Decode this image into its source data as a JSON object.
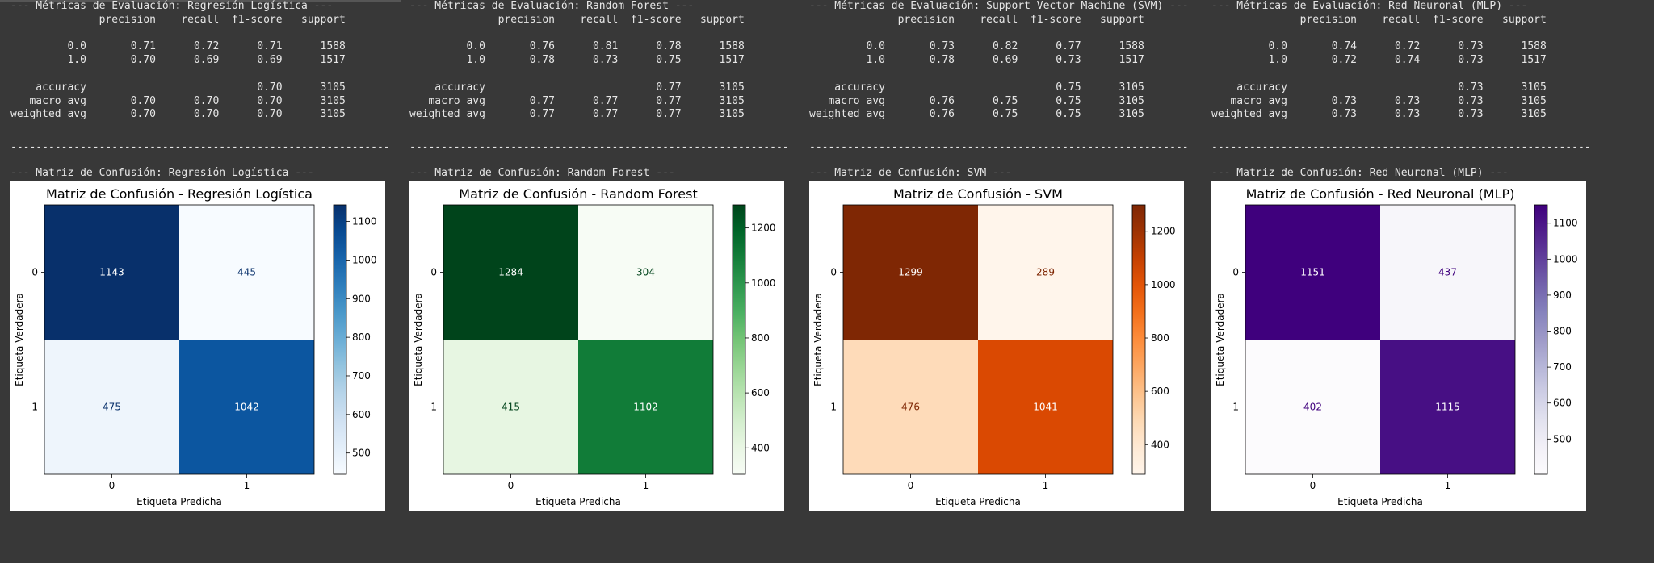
{
  "colors": {
    "background": "#383838",
    "output_text": "#e6e6e6",
    "figure_background": "#ffffff"
  },
  "panels": [
    {
      "report_header": "--- Métricas de Evaluación: Regresión Logística ---",
      "report_table": "              precision    recall  f1-score   support\n\n         0.0       0.71      0.72      0.71      1588\n         1.0       0.70      0.69      0.69      1517\n\n    accuracy                           0.70      3105\n   macro avg       0.70      0.70      0.70      3105\nweighted avg       0.70      0.70      0.70      3105",
      "separator": "------------------------------------------------------------",
      "matrix_header": "--- Matriz de Confusión: Regresión Logística ---",
      "colormap": "Blues",
      "chart_data": {
        "type": "heatmap",
        "title": "Matriz de Confusión - Regresión Logística",
        "xlabel": "Etiqueta Predicha",
        "ylabel": "Etiqueta Verdadera",
        "x_ticks": [
          "0",
          "1"
        ],
        "y_ticks": [
          "0",
          "1"
        ],
        "matrix": [
          [
            1143,
            445
          ],
          [
            475,
            1042
          ]
        ],
        "colorbar_range": [
          445,
          1143
        ],
        "colorbar_ticks": [
          "500",
          "600",
          "700",
          "800",
          "900",
          "1000",
          "1100"
        ],
        "colorbar_values": [
          500,
          600,
          700,
          800,
          900,
          1000,
          1100
        ]
      }
    },
    {
      "report_header": "--- Métricas de Evaluación: Random Forest ---",
      "report_table": "              precision    recall  f1-score   support\n\n         0.0       0.76      0.81      0.78      1588\n         1.0       0.78      0.73      0.75      1517\n\n    accuracy                           0.77      3105\n   macro avg       0.77      0.77      0.77      3105\nweighted avg       0.77      0.77      0.77      3105",
      "separator": "------------------------------------------------------------",
      "matrix_header": "--- Matriz de Confusión: Random Forest ---",
      "colormap": "Greens",
      "chart_data": {
        "type": "heatmap",
        "title": "Matriz de Confusión - Random Forest",
        "xlabel": "Etiqueta Predicha",
        "ylabel": "Etiqueta Verdadera",
        "x_ticks": [
          "0",
          "1"
        ],
        "y_ticks": [
          "0",
          "1"
        ],
        "matrix": [
          [
            1284,
            304
          ],
          [
            415,
            1102
          ]
        ],
        "colorbar_range": [
          304,
          1284
        ],
        "colorbar_ticks": [
          "400",
          "600",
          "800",
          "1000",
          "1200"
        ],
        "colorbar_values": [
          400,
          600,
          800,
          1000,
          1200
        ]
      }
    },
    {
      "report_header": "--- Métricas de Evaluación: Support Vector Machine (SVM) ---",
      "report_table": "              precision    recall  f1-score   support\n\n         0.0       0.73      0.82      0.77      1588\n         1.0       0.78      0.69      0.73      1517\n\n    accuracy                           0.75      3105\n   macro avg       0.76      0.75      0.75      3105\nweighted avg       0.76      0.75      0.75      3105",
      "separator": "------------------------------------------------------------",
      "matrix_header": "--- Matriz de Confusión: SVM ---",
      "colormap": "Oranges",
      "chart_data": {
        "type": "heatmap",
        "title": "Matriz de Confusión - SVM",
        "xlabel": "Etiqueta Predicha",
        "ylabel": "Etiqueta Verdadera",
        "x_ticks": [
          "0",
          "1"
        ],
        "y_ticks": [
          "0",
          "1"
        ],
        "matrix": [
          [
            1299,
            289
          ],
          [
            476,
            1041
          ]
        ],
        "colorbar_range": [
          289,
          1299
        ],
        "colorbar_ticks": [
          "400",
          "600",
          "800",
          "1000",
          "1200"
        ],
        "colorbar_values": [
          400,
          600,
          800,
          1000,
          1200
        ]
      }
    },
    {
      "report_header": "--- Métricas de Evaluación: Red Neuronal (MLP) ---",
      "report_table": "              precision    recall  f1-score   support\n\n         0.0       0.74      0.72      0.73      1588\n         1.0       0.72      0.74      0.73      1517\n\n    accuracy                           0.73      3105\n   macro avg       0.73      0.73      0.73      3105\nweighted avg       0.73      0.73      0.73      3105",
      "separator": "------------------------------------------------------------",
      "matrix_header": "--- Matriz de Confusión: Red Neuronal (MLP) ---",
      "colormap": "Purples",
      "chart_data": {
        "type": "heatmap",
        "title": "Matriz de Confusión - Red Neuronal (MLP)",
        "xlabel": "Etiqueta Predicha",
        "ylabel": "Etiqueta Verdadera",
        "x_ticks": [
          "0",
          "1"
        ],
        "y_ticks": [
          "0",
          "1"
        ],
        "matrix": [
          [
            1151,
            437
          ],
          [
            402,
            1115
          ]
        ],
        "colorbar_range": [
          402,
          1151
        ],
        "colorbar_ticks": [
          "500",
          "600",
          "700",
          "800",
          "900",
          "1000",
          "1100"
        ],
        "colorbar_values": [
          500,
          600,
          700,
          800,
          900,
          1000,
          1100
        ]
      }
    }
  ]
}
